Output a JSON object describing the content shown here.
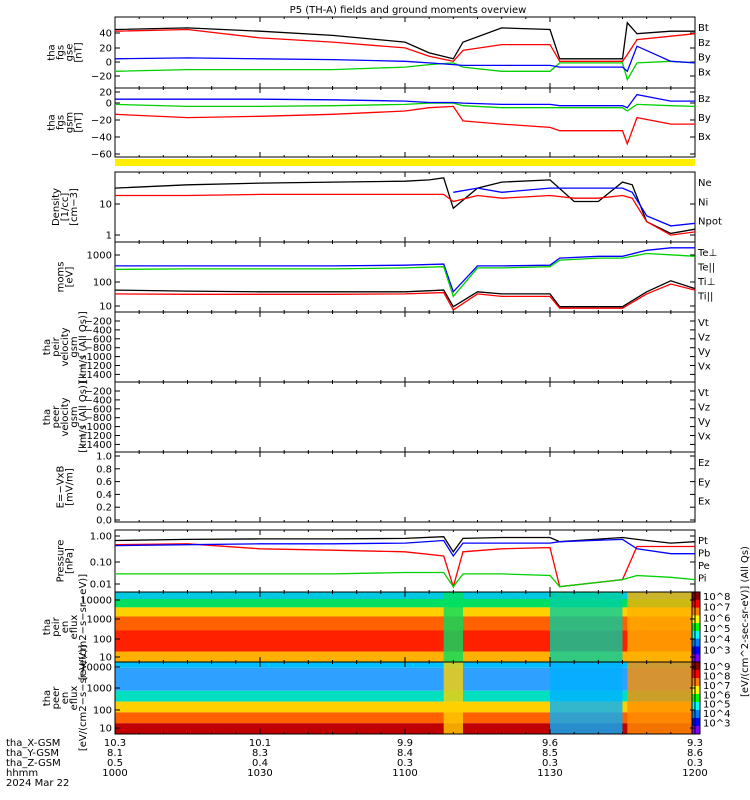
{
  "title": "P5 (TH-A) fields and ground moments overview",
  "date": "2024 Mar 22",
  "colors": {
    "black": "#000000",
    "red": "#ff0000",
    "green": "#00d000",
    "blue": "#0000ff",
    "yellow": "#ffee00"
  },
  "chart_data": [
    {
      "id": "fgs_gse",
      "type": "line",
      "ylabel": [
        "tha",
        "fgs",
        "gse",
        "[nT]"
      ],
      "yticks": [
        "40",
        "20",
        "0",
        "−20"
      ],
      "ylim": [
        -30,
        55
      ],
      "legend": [
        {
          "label": "Bt",
          "color": "black"
        },
        {
          "label": "Bz",
          "color": "red"
        },
        {
          "label": "By",
          "color": "green"
        },
        {
          "label": "Bx",
          "color": "blue"
        }
      ],
      "series": [
        {
          "name": "Bt",
          "color": "black",
          "x": [
            1000,
            1015,
            1030,
            1045,
            1100,
            1105,
            1110,
            1112,
            1120,
            1130,
            1132,
            1135,
            1145,
            1146,
            1148,
            1155,
            1200
          ],
          "y": [
            40,
            42,
            38,
            33,
            25,
            12,
            5,
            25,
            42,
            40,
            5,
            5,
            5,
            48,
            35,
            38,
            38
          ]
        },
        {
          "name": "Bz",
          "color": "red",
          "x": [
            1000,
            1015,
            1030,
            1045,
            1100,
            1105,
            1110,
            1112,
            1120,
            1130,
            1132,
            1135,
            1145,
            1146,
            1148,
            1155,
            1200
          ],
          "y": [
            38,
            40,
            30,
            25,
            18,
            8,
            2,
            15,
            22,
            22,
            2,
            2,
            2,
            10,
            28,
            32,
            35
          ]
        },
        {
          "name": "By",
          "color": "green",
          "x": [
            1000,
            1015,
            1030,
            1045,
            1100,
            1105,
            1110,
            1112,
            1120,
            1130,
            1132,
            1135,
            1145,
            1146,
            1148,
            1155,
            1200
          ],
          "y": [
            -10,
            -8,
            -8,
            -8,
            -5,
            -2,
            0,
            -5,
            -10,
            -10,
            0,
            0,
            0,
            -20,
            0,
            2,
            0
          ]
        },
        {
          "name": "Bx",
          "color": "blue",
          "x": [
            1000,
            1015,
            1030,
            1045,
            1100,
            1105,
            1110,
            1112,
            1120,
            1130,
            1132,
            1135,
            1145,
            1146,
            1148,
            1155,
            1200
          ],
          "y": [
            5,
            6,
            5,
            4,
            2,
            0,
            -2,
            -3,
            -3,
            -3,
            -5,
            -5,
            -5,
            -10,
            20,
            2,
            0
          ]
        }
      ]
    },
    {
      "id": "fgs_gsm",
      "type": "line",
      "ylabel": [
        "tha",
        "fgs",
        "gsm",
        "[nT]"
      ],
      "yticks": [
        "20",
        "0",
        "−20",
        "−40",
        "−60"
      ],
      "ylim": [
        -80,
        25
      ],
      "legend": [
        {
          "label": "Bz",
          "color": "red"
        },
        {
          "label": "By",
          "color": "green"
        },
        {
          "label": "Bx",
          "color": "blue"
        }
      ],
      "series": [
        {
          "name": "Bz",
          "color": "red",
          "x": [
            1000,
            1015,
            1030,
            1045,
            1100,
            1105,
            1110,
            1112,
            1120,
            1130,
            1132,
            1135,
            1145,
            1146,
            1148,
            1155,
            1200
          ],
          "y": [
            -15,
            -20,
            -18,
            -15,
            -10,
            -5,
            -3,
            -25,
            -30,
            -35,
            -40,
            -40,
            -40,
            -60,
            -20,
            -30,
            -30
          ]
        },
        {
          "name": "By",
          "color": "green",
          "x": [
            1000,
            1015,
            1030,
            1045,
            1100,
            1105,
            1110,
            1112,
            1120,
            1130,
            1132,
            1135,
            1145,
            1146,
            1148,
            1155,
            1200
          ],
          "y": [
            0,
            -3,
            -3,
            -2,
            0,
            2,
            2,
            -2,
            -5,
            -5,
            -5,
            -5,
            -5,
            -10,
            0,
            -2,
            -3
          ]
        },
        {
          "name": "Bx",
          "color": "blue",
          "x": [
            1000,
            1015,
            1030,
            1045,
            1100,
            1105,
            1110,
            1112,
            1120,
            1130,
            1132,
            1135,
            1145,
            1146,
            1148,
            1155,
            1200
          ],
          "y": [
            8,
            8,
            8,
            7,
            5,
            3,
            3,
            2,
            0,
            0,
            -2,
            -2,
            -2,
            -5,
            15,
            5,
            5
          ]
        }
      ]
    },
    {
      "id": "density",
      "type": "line",
      "log": true,
      "ylabel": [
        "Density",
        "[1/cc]",
        "[cm−3]"
      ],
      "yticks": [
        "10",
        "1"
      ],
      "ylim": [
        0.5,
        60
      ],
      "legend": [
        {
          "label": "Ne",
          "color": "red"
        },
        {
          "label": "Ni",
          "color": "black"
        },
        {
          "label": "Npot",
          "color": "blue"
        }
      ],
      "series": [
        {
          "name": "Ni",
          "color": "black",
          "x": [
            1000,
            1015,
            1030,
            1045,
            1100,
            1105,
            1108,
            1110,
            1115,
            1120,
            1130,
            1135,
            1140,
            1145,
            1147,
            1150,
            1155,
            1200
          ],
          "y": [
            20,
            25,
            28,
            30,
            32,
            35,
            40,
            5,
            20,
            30,
            35,
            8,
            8,
            30,
            25,
            2,
            0.9,
            1.2
          ]
        },
        {
          "name": "Ne",
          "color": "red",
          "x": [
            1000,
            1015,
            1030,
            1045,
            1100,
            1105,
            1108,
            1110,
            1115,
            1120,
            1130,
            1135,
            1140,
            1145,
            1147,
            1150,
            1155,
            1200
          ],
          "y": [
            12,
            12,
            13,
            13,
            13,
            13,
            13,
            8,
            12,
            10,
            12,
            10,
            10,
            12,
            10,
            2,
            0.8,
            1.0
          ]
        },
        {
          "name": "Npot",
          "color": "blue",
          "x": [
            1110,
            1115,
            1120,
            1130,
            1135,
            1140,
            1145,
            1147,
            1150,
            1155,
            1200
          ],
          "y": [
            15,
            20,
            15,
            20,
            20,
            20,
            20,
            15,
            3,
            1.5,
            1.8
          ]
        }
      ]
    },
    {
      "id": "moms",
      "type": "line",
      "log": true,
      "ylabel": [
        "moms",
        "[eV]"
      ],
      "yticks": [
        "1000",
        "100",
        "10"
      ],
      "ylim": [
        5,
        2500
      ],
      "legend": [
        {
          "label": "Te⊥",
          "color": "red"
        },
        {
          "label": "Te||",
          "color": "black"
        },
        {
          "label": "Ti⊥",
          "color": "green"
        },
        {
          "label": "Ti||",
          "color": "green"
        }
      ],
      "series": [
        {
          "name": "Ti",
          "color": "blue",
          "x": [
            1000,
            1015,
            1030,
            1045,
            1100,
            1108,
            1110,
            1115,
            1120,
            1130,
            1132,
            1140,
            1145,
            1150,
            1155,
            1200
          ],
          "y": [
            300,
            300,
            300,
            300,
            320,
            350,
            30,
            300,
            300,
            320,
            600,
            700,
            700,
            1200,
            1500,
            1500
          ]
        },
        {
          "name": "Ti⊥",
          "color": "green",
          "x": [
            1000,
            1015,
            1030,
            1045,
            1100,
            1108,
            1110,
            1115,
            1120,
            1130,
            1132,
            1140,
            1145,
            1150,
            1155,
            1200
          ],
          "y": [
            220,
            230,
            230,
            230,
            250,
            280,
            20,
            250,
            250,
            280,
            500,
            600,
            600,
            900,
            800,
            700
          ]
        },
        {
          "name": "Te||",
          "color": "black",
          "x": [
            1000,
            1015,
            1030,
            1045,
            1100,
            1108,
            1110,
            1115,
            1120,
            1130,
            1132,
            1140,
            1145,
            1150,
            1155,
            1200
          ],
          "y": [
            35,
            32,
            30,
            30,
            30,
            35,
            8,
            30,
            25,
            25,
            8,
            8,
            8,
            30,
            80,
            40
          ]
        },
        {
          "name": "Te⊥",
          "color": "red",
          "x": [
            1000,
            1015,
            1030,
            1045,
            1100,
            1108,
            1110,
            1115,
            1120,
            1130,
            1132,
            1140,
            1145,
            1150,
            1155,
            1200
          ],
          "y": [
            25,
            24,
            24,
            24,
            25,
            28,
            6,
            25,
            20,
            20,
            7,
            7,
            7,
            25,
            60,
            35
          ]
        }
      ]
    },
    {
      "id": "peir_vel",
      "type": "line",
      "ylabel": [
        "tha",
        "peir",
        "velocity",
        "gsm",
        "[km/s (All Qs)]"
      ],
      "yticks": [
        "−200",
        "−400",
        "−600",
        "−800",
        "−1000",
        "−1200",
        "−1400"
      ],
      "ylim": [
        -1450,
        -100
      ],
      "legend": [
        {
          "label": "Vt",
          "color": "black"
        },
        {
          "label": "Vz",
          "color": "red"
        },
        {
          "label": "Vy",
          "color": "green"
        },
        {
          "label": "Vx",
          "color": "blue"
        }
      ],
      "series": []
    },
    {
      "id": "peer_vel",
      "type": "line",
      "ylabel": [
        "tha",
        "peer",
        "velocity",
        "gsm",
        "[km/s (All Qs)]"
      ],
      "yticks": [
        "−200",
        "−400",
        "−600",
        "−800",
        "−1000",
        "−1200",
        "−1400"
      ],
      "ylim": [
        -1450,
        -100
      ],
      "legend": [
        {
          "label": "Vt",
          "color": "black"
        },
        {
          "label": "Vz",
          "color": "red"
        },
        {
          "label": "Vy",
          "color": "green"
        },
        {
          "label": "Vx",
          "color": "blue"
        }
      ],
      "series": []
    },
    {
      "id": "efield",
      "type": "line",
      "ylabel": [
        "E=−VxB",
        "[mV/m]"
      ],
      "yticks": [
        "1.0",
        "0.8",
        "0.6",
        "0.4",
        "0.2",
        "0.0"
      ],
      "ylim": [
        -0.05,
        1.0
      ],
      "legend": [
        {
          "label": "Ez",
          "color": "red"
        },
        {
          "label": "Ey",
          "color": "green"
        },
        {
          "label": "Ex",
          "color": "blue"
        }
      ],
      "series": []
    },
    {
      "id": "pressure",
      "type": "line",
      "log": true,
      "ylabel": [
        "Pressure",
        "[nPa]"
      ],
      "yticks": [
        "1.00",
        "0.10",
        "0.01"
      ],
      "ylim": [
        0.006,
        2.5
      ],
      "legend": [
        {
          "label": "Pt",
          "color": "black"
        },
        {
          "label": "Pb",
          "color": "red"
        },
        {
          "label": "Pe",
          "color": "green"
        },
        {
          "label": "Pi",
          "color": "blue"
        }
      ],
      "series": [
        {
          "name": "Pt",
          "color": "black",
          "x": [
            1000,
            1015,
            1030,
            1045,
            1100,
            1108,
            1110,
            1112,
            1120,
            1130,
            1132,
            1145,
            1148,
            1155,
            1200
          ],
          "y": [
            0.9,
            1.0,
            1.05,
            1.05,
            1.1,
            1.3,
            0.3,
            1.1,
            1.2,
            1.2,
            0.8,
            1.2,
            1.0,
            0.7,
            0.8
          ]
        },
        {
          "name": "Pb",
          "color": "red",
          "x": [
            1000,
            1015,
            1030,
            1045,
            1100,
            1108,
            1110,
            1112,
            1120,
            1130,
            1132,
            1145,
            1148,
            1155,
            1200
          ],
          "y": [
            0.6,
            0.65,
            0.4,
            0.35,
            0.3,
            0.2,
            0.01,
            0.3,
            0.4,
            0.45,
            0.01,
            0.02,
            0.5,
            0.5,
            0.5
          ]
        },
        {
          "name": "Pe",
          "color": "green",
          "x": [
            1000,
            1015,
            1030,
            1045,
            1100,
            1108,
            1110,
            1112,
            1120,
            1130,
            1132,
            1145,
            1148,
            1155,
            1200
          ],
          "y": [
            0.035,
            0.035,
            0.035,
            0.035,
            0.04,
            0.04,
            0.01,
            0.035,
            0.035,
            0.03,
            0.01,
            0.02,
            0.03,
            0.025,
            0.02
          ]
        },
        {
          "name": "Pi",
          "color": "blue",
          "x": [
            1000,
            1015,
            1030,
            1045,
            1100,
            1108,
            1110,
            1112,
            1120,
            1130,
            1132,
            1145,
            1148,
            1155,
            1200
          ],
          "y": [
            0.55,
            0.6,
            0.65,
            0.65,
            0.7,
            0.9,
            0.2,
            0.7,
            0.7,
            0.7,
            0.8,
            1.0,
            0.4,
            0.25,
            0.25
          ]
        }
      ]
    },
    {
      "id": "peir_spec",
      "type": "heatmap",
      "ylabel": [
        "tha",
        "peir",
        "en",
        "eflux",
        "[eV/(cm2−s−sr−eV)]"
      ],
      "yticks": [
        "10000",
        "1000",
        "100",
        "10"
      ],
      "colorbar": {
        "label": "[eV/(cm^2-sec-sr-eV)] (All Qs)",
        "ticks": [
          "10^8",
          "10^7",
          "10^6",
          "10^5",
          "10^4",
          "10^3"
        ]
      }
    },
    {
      "id": "peer_spec",
      "type": "heatmap",
      "ylabel": [
        "tha",
        "peer",
        "en",
        "eflux",
        "[eV/(cm2−s−sr−eV)]"
      ],
      "yticks": [
        "10000",
        "1000",
        "100",
        "10"
      ],
      "colorbar": {
        "label": "",
        "ticks": [
          "10^9",
          "10^8",
          "10^7",
          "10^6",
          "10^5",
          "10^4",
          "10^3"
        ]
      }
    }
  ],
  "xaxis": {
    "ticks_x": [
      1000,
      1030,
      1100,
      1130,
      1200
    ],
    "rows": [
      {
        "label": "tha_X-GSM",
        "values": [
          "10.3",
          "10.1",
          "9.9",
          "9.6",
          "9.3"
        ]
      },
      {
        "label": "tha_Y-GSM",
        "values": [
          "8.1",
          "8.3",
          "8.4",
          "8.5",
          "8.6"
        ]
      },
      {
        "label": "tha_Z-GSM",
        "values": [
          "0.5",
          "0.4",
          "0.3",
          "0.3",
          "0.3"
        ]
      },
      {
        "label": "hhmm",
        "values": [
          "1000",
          "1030",
          "1100",
          "1130",
          "1200"
        ]
      }
    ]
  }
}
